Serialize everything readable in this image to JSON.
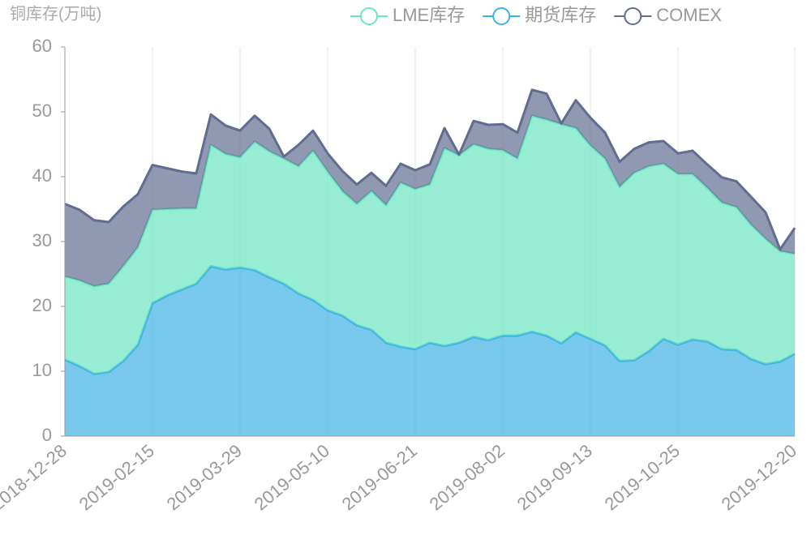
{
  "chart_data": {
    "type": "stacked_area",
    "y_axis_label": "铜库存(万吨)",
    "categories": [
      "2018-12-28",
      null,
      null,
      null,
      null,
      null,
      "2019-02-15",
      null,
      null,
      null,
      null,
      null,
      "2019-03-29",
      null,
      null,
      null,
      null,
      null,
      "2019-05-10",
      null,
      null,
      null,
      null,
      null,
      "2019-06-21",
      null,
      null,
      null,
      null,
      null,
      "2019-08-02",
      null,
      null,
      null,
      null,
      null,
      "2019-09-13",
      null,
      null,
      null,
      null,
      null,
      "2019-10-25",
      null,
      null,
      null,
      null,
      null,
      null,
      null,
      "2019-12-20"
    ],
    "series": [
      {
        "name": "LME库存",
        "color": "#6be6c1",
        "values": [
          12.8,
          13.2,
          13.5,
          13.6,
          14.6,
          15,
          14.4,
          13.3,
          12.5,
          11.6,
          18.7,
          17.8,
          17,
          19.8,
          19.4,
          19.3,
          19.6,
          23,
          21.4,
          19.2,
          18.7,
          21.4,
          21.2,
          25.3,
          24.7,
          24.4,
          30.5,
          28.9,
          29.7,
          29.5,
          28.6,
          27.3,
          33.3,
          33.3,
          33.8,
          31.5,
          29.8,
          28.8,
          26.8,
          28.9,
          28.5,
          27,
          26.3,
          25.5,
          23.7,
          22.6,
          22,
          20.7,
          19.3,
          17,
          15.4
        ]
      },
      {
        "name": "期货库存",
        "color": "#3fb1e3",
        "values": [
          11.8,
          10.8,
          9.6,
          9.9,
          11.6,
          14.1,
          20.5,
          21.7,
          22.6,
          23.5,
          26.2,
          25.7,
          26,
          25.6,
          24.5,
          23.5,
          22,
          21,
          19.4,
          18.6,
          17.1,
          16.4,
          14.4,
          13.8,
          13.4,
          14.4,
          13.9,
          14.4,
          15.3,
          14.8,
          15.5,
          15.5,
          16.1,
          15.5,
          14.3,
          16,
          15,
          14,
          11.6,
          11.7,
          13.1,
          15,
          14.1,
          14.9,
          14.6,
          13.4,
          13.3,
          11.9,
          11.1,
          11.5,
          12.7
        ]
      },
      {
        "name": "COMEX",
        "color": "#626c91",
        "values": [
          11.2,
          10.9,
          10.2,
          9.5,
          9.2,
          8.2,
          6.9,
          6.3,
          5.7,
          5.4,
          4.7,
          4.4,
          4.1,
          4,
          3.5,
          0.3,
          3.3,
          3.1,
          2.8,
          3.1,
          3,
          2.8,
          3,
          2.9,
          2.9,
          3.1,
          3.1,
          0.1,
          3.6,
          3.7,
          4,
          4,
          4,
          4,
          0.1,
          4.3,
          4.3,
          4,
          3.9,
          3.7,
          3.7,
          3.5,
          3.2,
          3.6,
          3.6,
          3.9,
          4,
          4.3,
          4.1,
          0.3,
          4
        ]
      }
    ],
    "ylim": [
      0,
      60
    ],
    "yticks": [
      0,
      10,
      20,
      30,
      40,
      50,
      60
    ],
    "grid": true
  }
}
